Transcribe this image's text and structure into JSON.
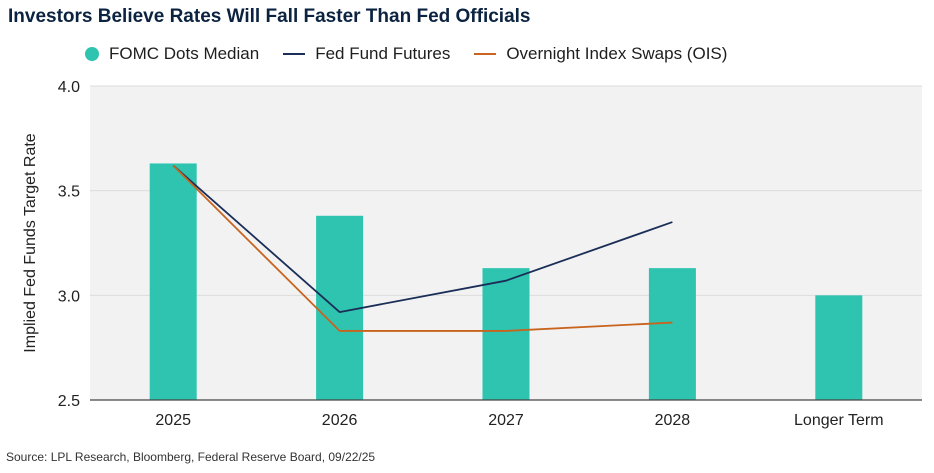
{
  "title": "Investors Believe Rates Will Fall Faster Than Fed Officials",
  "source": "Source: LPL Research, Bloomberg, Federal Reserve Board, 09/22/25",
  "colors": {
    "bars": "#2ec4b0",
    "futures": "#1b2e57",
    "ois": "#c8641e",
    "plot_bg": "#f2f2f2",
    "grid": "#dcdcdc"
  },
  "chart_data": {
    "type": "bar",
    "title": "Investors Believe Rates Will Fall Faster Than Fed Officials",
    "xlabel": "",
    "ylabel": "Implied Fed Funds Target Rate",
    "ylim": [
      2.5,
      4.0
    ],
    "yticks": [
      "2.5",
      "3.0",
      "3.5",
      "4.0"
    ],
    "categories": [
      "2025",
      "2026",
      "2027",
      "2028",
      "Longer Term"
    ],
    "grid": true,
    "legend_position": "top",
    "series": [
      {
        "name": "FOMC Dots Median",
        "type": "bar",
        "values": [
          3.63,
          3.38,
          3.13,
          3.13,
          3.0
        ]
      },
      {
        "name": "Fed Fund Futures",
        "type": "line",
        "values": [
          3.62,
          2.92,
          3.07,
          3.35,
          null
        ]
      },
      {
        "name": "Overnight Index Swaps (OIS)",
        "type": "line",
        "values": [
          3.62,
          2.83,
          2.83,
          2.87,
          null
        ]
      }
    ]
  }
}
